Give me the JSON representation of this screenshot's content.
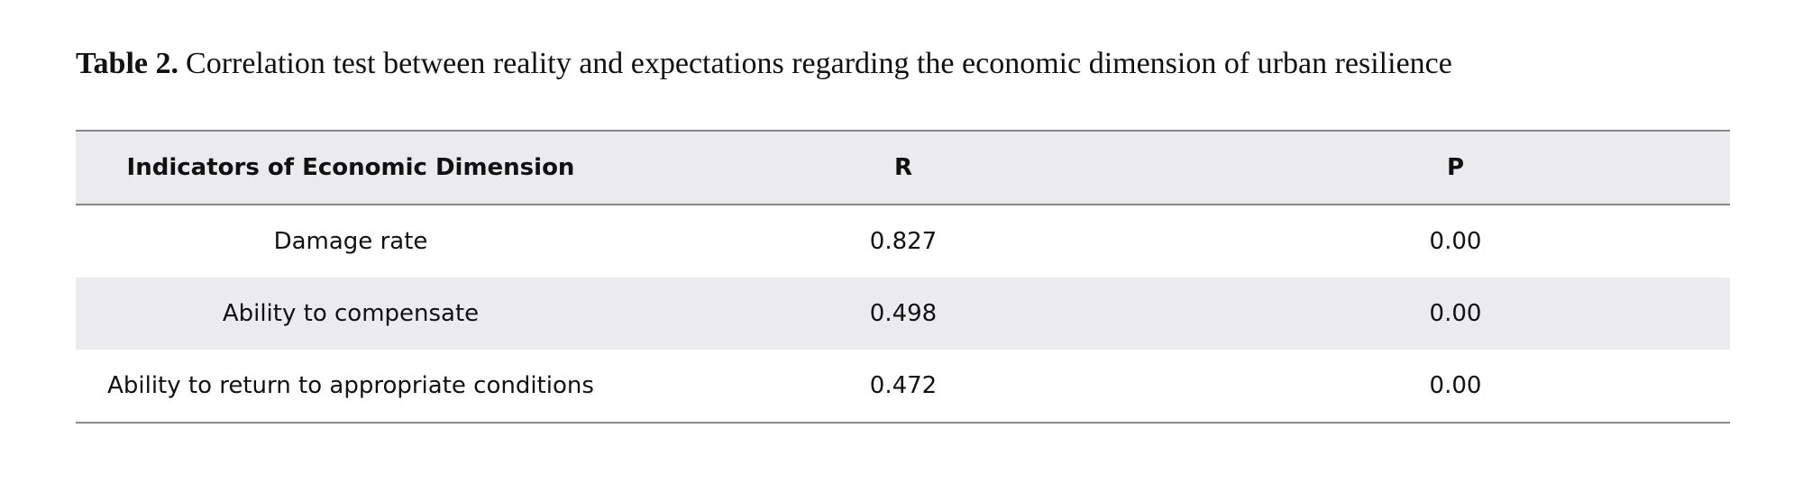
{
  "caption": {
    "label": "Table 2.",
    "text": "Correlation test between reality and expectations regarding the economic dimension of urban resilience"
  },
  "table": {
    "header": [
      "Indicators of Economic Dimension",
      "R",
      "P"
    ],
    "rows": [
      [
        "Damage rate",
        "0.827",
        "0.00"
      ],
      [
        "Ability to compensate",
        "0.498",
        "0.00"
      ],
      [
        "Ability to return to appropriate conditions",
        "0.472",
        "0.00"
      ]
    ]
  }
}
